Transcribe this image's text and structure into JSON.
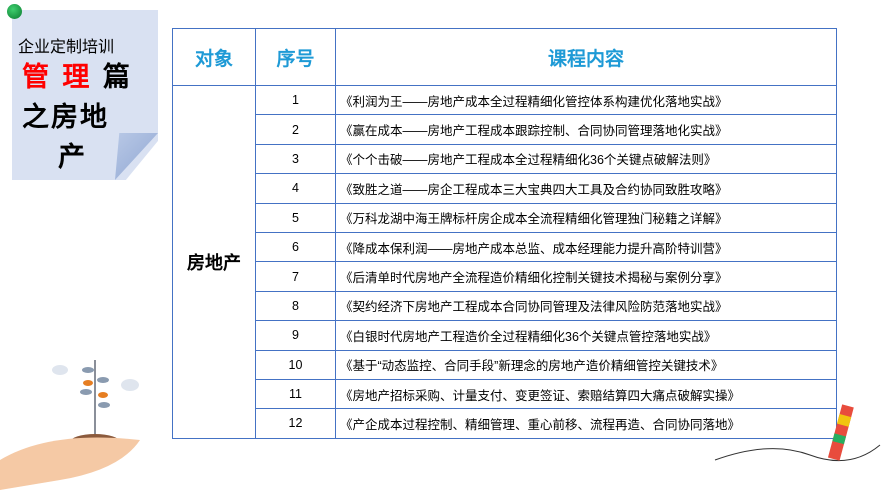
{
  "note": {
    "line1": "企业定制培训",
    "line2_red": "管 理",
    "line2_black": "篇",
    "line3": "之房地",
    "line4": "产"
  },
  "colors": {
    "accent": "#1e9ad6",
    "border": "#4472c4",
    "red": "#ff0000"
  },
  "table": {
    "headers": [
      "对象",
      "序号",
      "课程内容"
    ],
    "category": "房地产",
    "rows": [
      {
        "no": "1",
        "title": "《利润为王——房地产成本全过程精细化管控体系构建优化落地实战》"
      },
      {
        "no": "2",
        "title": "《赢在成本——房地产工程成本跟踪控制、合同协同管理落地化实战》"
      },
      {
        "no": "3",
        "title": "《个个击破——房地产工程成本全过程精细化36个关键点破解法则》"
      },
      {
        "no": "4",
        "title": "《致胜之道——房企工程成本三大宝典四大工具及合约协同致胜攻略》"
      },
      {
        "no": "5",
        "title": "《万科龙湖中海王牌标杆房企成本全流程精细化管理独门秘籍之详解》"
      },
      {
        "no": "6",
        "title": "《降成本保利润——房地产成本总监、成本经理能力提升高阶特训营》"
      },
      {
        "no": "7",
        "title": "《后清单时代房地产全流程造价精细化控制关键技术揭秘与案例分享》"
      },
      {
        "no": "8",
        "title": "《契约经济下房地产工程成本合同协同管理及法律风险防范落地实战》"
      },
      {
        "no": "9",
        "title": "《白银时代房地产工程造价全过程精细化36个关键点管控落地实战》"
      },
      {
        "no": "10",
        "title": "《基于“动态监控、合同手段”新理念的房地产造价精细管控关键技术》"
      },
      {
        "no": "11",
        "title": "《房地产招标采购、计量支付、变更签证、索赔结算四大痛点破解实操》"
      },
      {
        "no": "12",
        "title": "《产企成本过程控制、精细管理、重心前移、流程再造、合同协同落地》"
      }
    ]
  }
}
